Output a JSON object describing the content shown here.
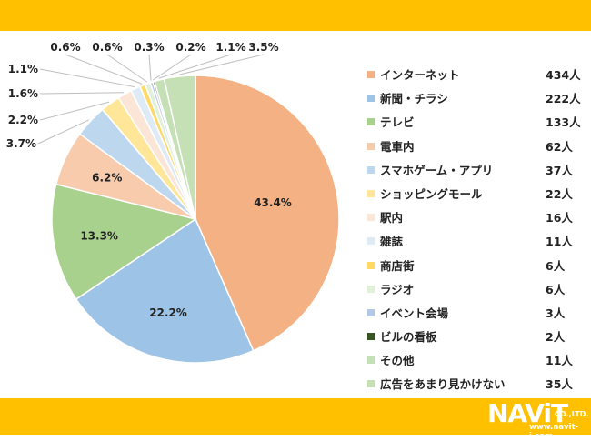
{
  "chart_data": {
    "type": "pie",
    "slices": [
      {
        "label": "インターネット",
        "count": "434人",
        "pct": 43.4,
        "pct_label": "43.4%",
        "color": "#f4b183"
      },
      {
        "label": "新聞・チラシ",
        "count": "222人",
        "pct": 22.2,
        "pct_label": "22.2%",
        "color": "#9dc3e6"
      },
      {
        "label": "テレビ",
        "count": "133人",
        "pct": 13.3,
        "pct_label": "13.3%",
        "color": "#a9d18e"
      },
      {
        "label": "電車内",
        "count": "62人",
        "pct": 6.2,
        "pct_label": "6.2%",
        "color": "#f8cbad"
      },
      {
        "label": "スマホゲーム・アプリ",
        "count": "37人",
        "pct": 3.7,
        "pct_label": "3.7%",
        "color": "#bdd7ee"
      },
      {
        "label": "ショッピングモール",
        "count": "22人",
        "pct": 2.2,
        "pct_label": "2.2%",
        "color": "#ffe699"
      },
      {
        "label": "駅内",
        "count": "16人",
        "pct": 1.6,
        "pct_label": "1.6%",
        "color": "#fbe5d6"
      },
      {
        "label": "雑誌",
        "count": "11人",
        "pct": 1.1,
        "pct_label": "1.1%",
        "color": "#deebf7"
      },
      {
        "label": "商店街",
        "count": "6人",
        "pct": 0.6,
        "pct_label": "0.6%",
        "color": "#ffd966"
      },
      {
        "label": "ラジオ",
        "count": "6人",
        "pct": 0.6,
        "pct_label": "0.6%",
        "color": "#e2f0d9"
      },
      {
        "label": "イベント会場",
        "count": "3人",
        "pct": 0.3,
        "pct_label": "0.3%",
        "color": "#b4c7e7"
      },
      {
        "label": "ビルの看板",
        "count": "2人",
        "pct": 0.2,
        "pct_label": "0.2%",
        "color": "#375623"
      },
      {
        "label": "その他",
        "count": "11人",
        "pct": 1.1,
        "pct_label": "1.1%",
        "color": "#c5e0b4"
      },
      {
        "label": "広告をあまり見かけない",
        "count": "35人",
        "pct": 3.5,
        "pct_label": "3.5%",
        "color": "#c5e0b4"
      }
    ]
  },
  "logo": {
    "word": "NAViT",
    "suffix": "CO.,LTD.",
    "url": "www.navit-j.com"
  }
}
